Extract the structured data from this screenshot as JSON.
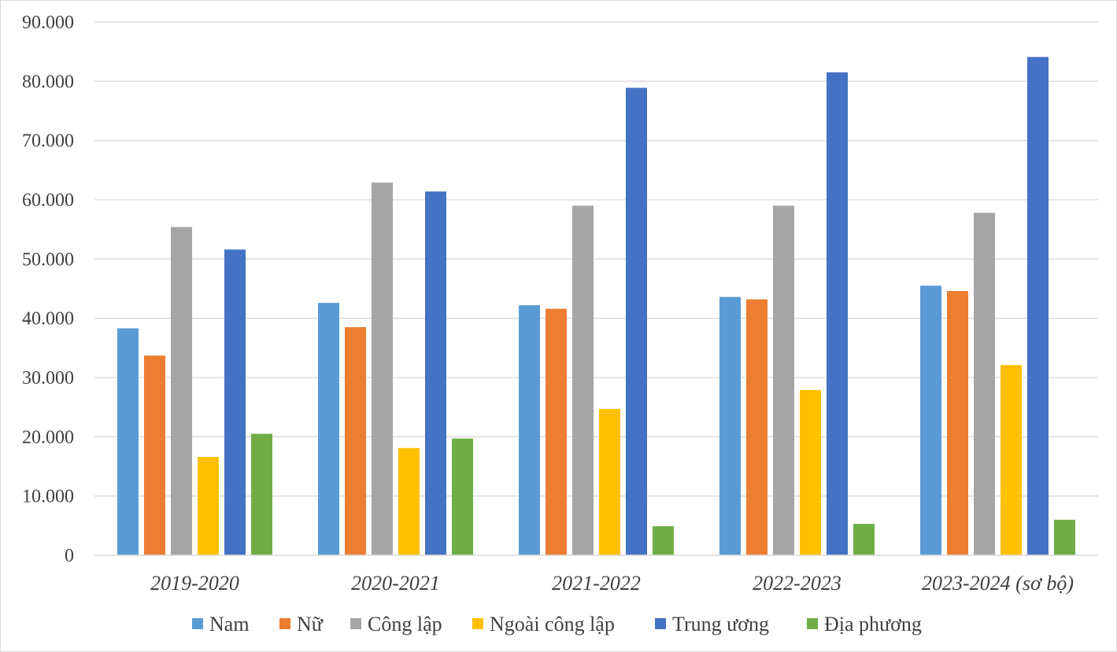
{
  "chart_data": {
    "type": "bar",
    "title": "",
    "xlabel": "",
    "ylabel": "",
    "categories": [
      "2019-2020",
      "2020-2021",
      "2021-2022",
      "2022-2023",
      "2023-2024 (sơ bộ)"
    ],
    "ylim": [
      0,
      90000
    ],
    "yticks": [
      0,
      10000,
      20000,
      30000,
      40000,
      50000,
      60000,
      70000,
      80000,
      90000
    ],
    "ytick_labels": [
      "0",
      "10.000",
      "20.000",
      "30.000",
      "40.000",
      "50.000",
      "60.000",
      "70.000",
      "80.000",
      "90.000"
    ],
    "grid": true,
    "legend_position": "bottom",
    "series": [
      {
        "name": "Nam",
        "color": "#5b9bd5",
        "values": [
          38300,
          42600,
          42200,
          43600,
          45500
        ]
      },
      {
        "name": "Nữ",
        "color": "#ed7d31",
        "values": [
          33700,
          38500,
          41600,
          43200,
          44600
        ]
      },
      {
        "name": "Công lập",
        "color": "#a5a5a5",
        "values": [
          55400,
          62900,
          59000,
          59000,
          57800
        ]
      },
      {
        "name": "Ngoài công lập",
        "color": "#ffc000",
        "values": [
          16600,
          18100,
          24700,
          27900,
          32100
        ]
      },
      {
        "name": "Trung ương",
        "color": "#4472c4",
        "values": [
          51600,
          61400,
          78900,
          81500,
          84100
        ]
      },
      {
        "name": "Địa phương",
        "color": "#70ad47",
        "values": [
          20500,
          19700,
          4900,
          5300,
          6000
        ]
      }
    ]
  }
}
